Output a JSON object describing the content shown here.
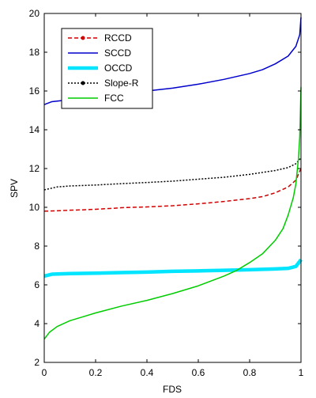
{
  "chart_data": {
    "type": "line",
    "title": "",
    "xlabel": "FDS",
    "ylabel": "SPV",
    "xlim": [
      0,
      1
    ],
    "ylim": [
      2,
      20
    ],
    "xticks": [
      0,
      0.2,
      0.4,
      0.6,
      0.8,
      1
    ],
    "xtick_labels": [
      "0",
      "0.2",
      "0.4",
      "0.6",
      "0.8",
      "1"
    ],
    "yticks": [
      2,
      4,
      6,
      8,
      10,
      12,
      14,
      16,
      18,
      20
    ],
    "ytick_labels": [
      "2",
      "4",
      "6",
      "8",
      "10",
      "12",
      "14",
      "16",
      "18",
      "20"
    ],
    "grid": false,
    "legend_position": "top-left",
    "series": [
      {
        "name": "RCCD",
        "color": "#cc0000",
        "style": "dashed",
        "marker": "dot",
        "points": [
          [
            0,
            9.8
          ],
          [
            0.05,
            9.82
          ],
          [
            0.1,
            9.85
          ],
          [
            0.15,
            9.87
          ],
          [
            0.2,
            9.9
          ],
          [
            0.27,
            9.95
          ],
          [
            0.3,
            9.98
          ],
          [
            0.4,
            10.02
          ],
          [
            0.5,
            10.08
          ],
          [
            0.6,
            10.18
          ],
          [
            0.7,
            10.3
          ],
          [
            0.8,
            10.45
          ],
          [
            0.85,
            10.55
          ],
          [
            0.9,
            10.75
          ],
          [
            0.95,
            11.05
          ],
          [
            0.98,
            11.4
          ],
          [
            1,
            12.0
          ]
        ]
      },
      {
        "name": "SCCD",
        "color": "#0000cc",
        "style": "solid",
        "points": [
          [
            0,
            15.3
          ],
          [
            0.03,
            15.45
          ],
          [
            0.1,
            15.55
          ],
          [
            0.2,
            15.7
          ],
          [
            0.3,
            15.85
          ],
          [
            0.4,
            16.0
          ],
          [
            0.5,
            16.15
          ],
          [
            0.6,
            16.35
          ],
          [
            0.7,
            16.6
          ],
          [
            0.8,
            16.9
          ],
          [
            0.85,
            17.1
          ],
          [
            0.9,
            17.4
          ],
          [
            0.95,
            17.8
          ],
          [
            0.98,
            18.3
          ],
          [
            0.995,
            18.9
          ],
          [
            1,
            19.8
          ]
        ]
      },
      {
        "name": "OCCD",
        "color": "#00e5ff",
        "style": "solid-thick",
        "points": [
          [
            0,
            6.45
          ],
          [
            0.03,
            6.55
          ],
          [
            0.1,
            6.58
          ],
          [
            0.2,
            6.6
          ],
          [
            0.3,
            6.63
          ],
          [
            0.4,
            6.66
          ],
          [
            0.5,
            6.7
          ],
          [
            0.6,
            6.72
          ],
          [
            0.7,
            6.75
          ],
          [
            0.8,
            6.78
          ],
          [
            0.9,
            6.82
          ],
          [
            0.95,
            6.85
          ],
          [
            0.98,
            6.95
          ],
          [
            1,
            7.3
          ]
        ]
      },
      {
        "name": "Slope-R",
        "color": "#000000",
        "style": "dotted",
        "marker": "dot",
        "points": [
          [
            0,
            10.9
          ],
          [
            0.05,
            11.05
          ],
          [
            0.1,
            11.1
          ],
          [
            0.2,
            11.15
          ],
          [
            0.3,
            11.22
          ],
          [
            0.4,
            11.28
          ],
          [
            0.5,
            11.35
          ],
          [
            0.6,
            11.45
          ],
          [
            0.7,
            11.55
          ],
          [
            0.8,
            11.7
          ],
          [
            0.9,
            11.9
          ],
          [
            0.95,
            12.05
          ],
          [
            0.98,
            12.25
          ],
          [
            1,
            12.55
          ]
        ]
      },
      {
        "name": "FCC",
        "color": "#00cc00",
        "style": "solid",
        "points": [
          [
            0,
            3.2
          ],
          [
            0.02,
            3.55
          ],
          [
            0.05,
            3.85
          ],
          [
            0.1,
            4.15
          ],
          [
            0.15,
            4.35
          ],
          [
            0.2,
            4.55
          ],
          [
            0.3,
            4.9
          ],
          [
            0.4,
            5.2
          ],
          [
            0.5,
            5.55
          ],
          [
            0.6,
            5.95
          ],
          [
            0.7,
            6.45
          ],
          [
            0.75,
            6.75
          ],
          [
            0.8,
            7.15
          ],
          [
            0.85,
            7.6
          ],
          [
            0.9,
            8.3
          ],
          [
            0.93,
            8.9
          ],
          [
            0.95,
            9.6
          ],
          [
            0.97,
            10.5
          ],
          [
            0.98,
            11.2
          ],
          [
            0.99,
            12.5
          ],
          [
            0.995,
            13.6
          ],
          [
            1,
            16.2
          ]
        ]
      }
    ]
  }
}
